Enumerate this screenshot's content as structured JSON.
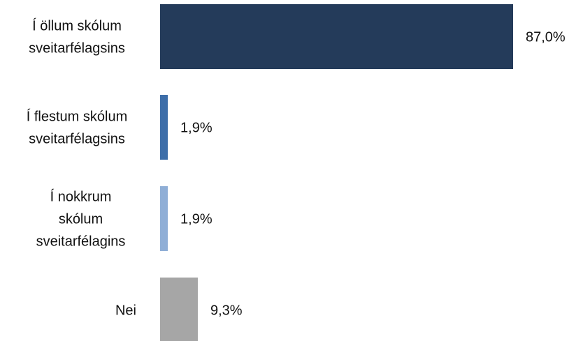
{
  "chart_data": {
    "type": "bar",
    "orientation": "horizontal",
    "categories": [
      [
        "Í öllum skólum",
        "sveitarfélagsins"
      ],
      [
        "Í flestum skólum",
        "sveitarfélagsins"
      ],
      [
        "Í nokkrum",
        "skólum",
        "sveitarfélagins"
      ],
      [
        "Nei"
      ]
    ],
    "values": [
      87.0,
      1.9,
      1.9,
      9.3
    ],
    "value_labels": [
      "87,0%",
      "1,9%",
      "1,9%",
      "9,3%"
    ],
    "colors": [
      "#243b5a",
      "#3d6ea9",
      "#8faed6",
      "#a6a6a6"
    ],
    "xlim": [
      0,
      100
    ],
    "title": "",
    "xlabel": "",
    "ylabel": "",
    "grid": false,
    "legend": "none"
  }
}
